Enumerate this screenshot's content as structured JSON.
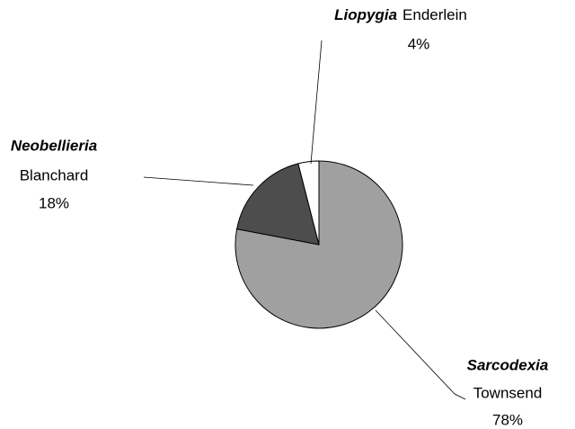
{
  "chart_data": {
    "type": "pie",
    "categories": [
      "Sarcodexia",
      "Neobellieria",
      "Liopygia"
    ],
    "authors": [
      "Townsend",
      "Blanchard",
      "Enderlein"
    ],
    "values": [
      78,
      18,
      4
    ],
    "value_labels": [
      "78%",
      "18%",
      "4%"
    ],
    "colors": [
      "#a0a0a0",
      "#4d4d4d",
      "#ffffff"
    ]
  }
}
